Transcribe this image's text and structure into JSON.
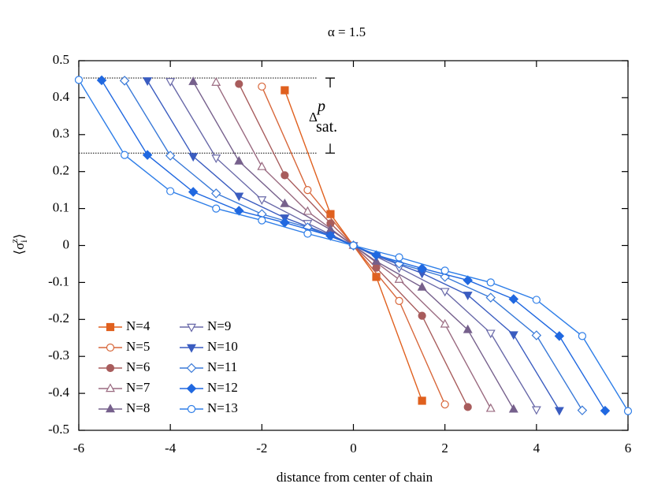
{
  "chart_data": {
    "type": "line",
    "title": "α = 1.5",
    "xlabel": "distance from center of chain",
    "ylabel": {
      "open": "⟨σ",
      "sub": "i",
      "sup": "z",
      "close": "⟩"
    },
    "xlim": [
      -6,
      6
    ],
    "ylim": [
      -0.5,
      0.5
    ],
    "xticks": [
      -6,
      -4,
      -2,
      0,
      2,
      4,
      6
    ],
    "yticks": [
      -0.5,
      -0.4,
      -0.3,
      -0.2,
      -0.1,
      0,
      0.1,
      0.2,
      0.3,
      0.4,
      0.5
    ],
    "legend": "lower left",
    "hlines": [
      {
        "y": 0.453,
        "x": [
          -6,
          -0.8
        ]
      },
      {
        "y": 0.25,
        "x": [
          -6,
          -0.8
        ]
      }
    ],
    "annotation": {
      "text": "Δ",
      "sup": "p",
      "sub": "sat."
    },
    "series": [
      {
        "name": "N=4",
        "color": "#e0601e",
        "marker": "square",
        "filled": true,
        "x": [
          -1.5,
          -0.5,
          0.5,
          1.5
        ],
        "values": [
          0.42,
          0.085,
          -0.085,
          -0.42
        ]
      },
      {
        "name": "N=5",
        "color": "#d8673a",
        "marker": "circle",
        "filled": false,
        "x": [
          -2,
          -1,
          0,
          1,
          2
        ],
        "values": [
          0.43,
          0.15,
          0,
          -0.15,
          -0.43
        ]
      },
      {
        "name": "N=6",
        "color": "#a85c5c",
        "marker": "circle",
        "filled": true,
        "x": [
          -2.5,
          -1.5,
          -0.5,
          0.5,
          1.5,
          2.5
        ],
        "values": [
          0.437,
          0.19,
          0.06,
          -0.06,
          -0.19,
          -0.437
        ]
      },
      {
        "name": "N=7",
        "color": "#9a6a80",
        "marker": "triangle",
        "filled": false,
        "x": [
          -3,
          -2,
          -1,
          0,
          1,
          2,
          3
        ],
        "values": [
          0.441,
          0.213,
          0.092,
          0,
          -0.092,
          -0.213,
          -0.441
        ]
      },
      {
        "name": "N=8",
        "color": "#76608c",
        "marker": "triangle",
        "filled": true,
        "x": [
          -3.5,
          -2.5,
          -1.5,
          -0.5,
          0.5,
          1.5,
          2.5,
          3.5
        ],
        "values": [
          0.443,
          0.228,
          0.113,
          0.043,
          -0.043,
          -0.113,
          -0.228,
          -0.443
        ]
      },
      {
        "name": "N=9",
        "color": "#6868a8",
        "marker": "triangle-down",
        "filled": false,
        "x": [
          -4,
          -3,
          -2,
          -1,
          0,
          1,
          2,
          3,
          4
        ],
        "values": [
          0.444,
          0.237,
          0.124,
          0.06,
          0,
          -0.06,
          -0.124,
          -0.237,
          -0.444
        ]
      },
      {
        "name": "N=10",
        "color": "#3a5cc0",
        "marker": "triangle-down",
        "filled": true,
        "x": [
          -4.5,
          -3.5,
          -2.5,
          -1.5,
          -0.5,
          0.5,
          1.5,
          2.5,
          3.5,
          4.5
        ],
        "values": [
          0.446,
          0.241,
          0.134,
          0.075,
          0.028,
          -0.028,
          -0.075,
          -0.134,
          -0.241,
          -0.446
        ]
      },
      {
        "name": "N=11",
        "color": "#3a7ad8",
        "marker": "diamond",
        "filled": false,
        "x": [
          -5,
          -4,
          -3,
          -2,
          -1,
          0,
          1,
          2,
          3,
          4,
          5
        ],
        "values": [
          0.446,
          0.243,
          0.141,
          0.085,
          0.049,
          0,
          -0.049,
          -0.085,
          -0.141,
          -0.243,
          -0.446
        ]
      },
      {
        "name": "N=12",
        "color": "#2068e0",
        "marker": "diamond",
        "filled": true,
        "x": [
          -5.5,
          -4.5,
          -3.5,
          -2.5,
          -1.5,
          -0.5,
          0.5,
          1.5,
          2.5,
          3.5,
          4.5,
          5.5
        ],
        "values": [
          0.447,
          0.245,
          0.145,
          0.094,
          0.062,
          0.026,
          -0.026,
          -0.062,
          -0.094,
          -0.145,
          -0.245,
          -0.447
        ]
      },
      {
        "name": "N=13",
        "color": "#2e7ee8",
        "marker": "circle",
        "filled": false,
        "x": [
          -6,
          -5,
          -4,
          -3,
          -2,
          -1,
          0,
          1,
          2,
          3,
          4,
          5,
          6
        ],
        "values": [
          0.448,
          0.245,
          0.147,
          0.1,
          0.068,
          0.032,
          0,
          -0.032,
          -0.068,
          -0.1,
          -0.147,
          -0.245,
          -0.448
        ]
      }
    ]
  }
}
